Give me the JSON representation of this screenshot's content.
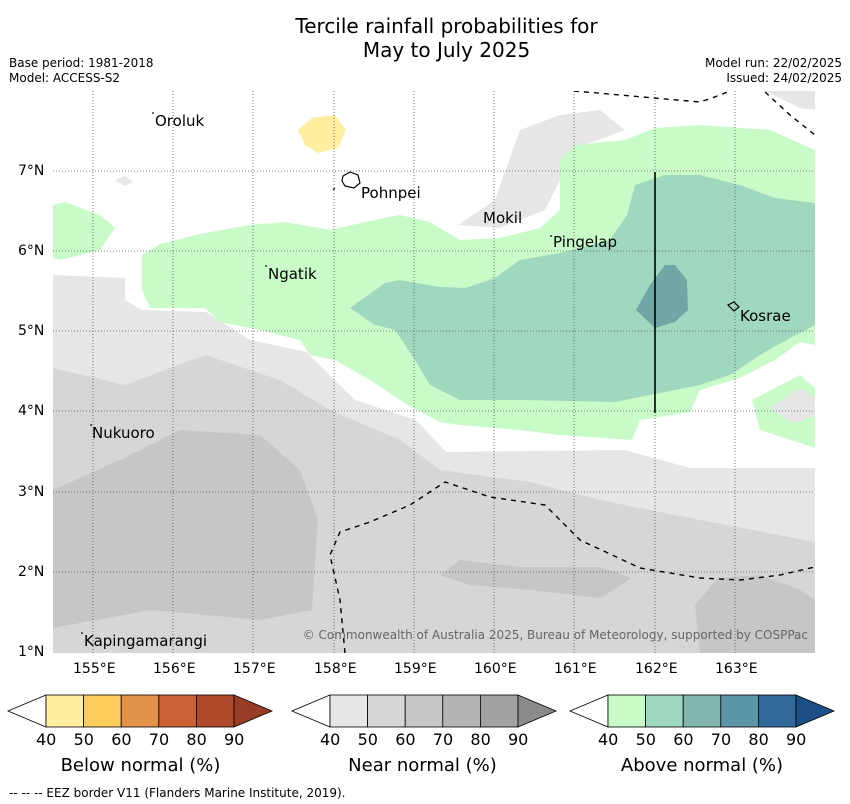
{
  "title": {
    "line1": "Tercile rainfall probabilities for",
    "line2": "May to July 2025"
  },
  "meta": {
    "base_period": "Base period: 1981-2018",
    "model": "Model: ACCESS-S2",
    "model_run": "Model run: 22/02/2025",
    "issued": "Issued: 24/02/2025"
  },
  "axes": {
    "lat_labels": [
      "7°N",
      "6°N",
      "5°N",
      "4°N",
      "3°N",
      "2°N",
      "1°N"
    ],
    "lon_labels": [
      "155°E",
      "156°E",
      "157°E",
      "158°E",
      "159°E",
      "160°E",
      "161°E",
      "162°E",
      "163°E"
    ]
  },
  "places": [
    {
      "name": "Oroluk"
    },
    {
      "name": "Pohnpei"
    },
    {
      "name": "Mokil"
    },
    {
      "name": "Pingelap"
    },
    {
      "name": "Ngatik"
    },
    {
      "name": "Kosrae"
    },
    {
      "name": "Nukuoro"
    },
    {
      "name": "Kapingamarangi"
    }
  ],
  "copyright": "© Commonwealth of Australia 2025, Bureau of Meteorology, supported by COSPPac",
  "colorbars": {
    "ticks": [
      "40",
      "50",
      "60",
      "70",
      "80",
      "90"
    ],
    "below": {
      "label": "Below normal (%)",
      "colors": [
        "#ffffff",
        "#ffeda0",
        "#fecc5c",
        "#e3924a",
        "#cc6233",
        "#b04a2a",
        "#983c25"
      ]
    },
    "near": {
      "label": "Near normal (%)",
      "colors": [
        "#ffffff",
        "#e6e6e6",
        "#d6d6d6",
        "#c6c6c6",
        "#b4b4b4",
        "#a2a2a2",
        "#8a8a8a"
      ]
    },
    "above": {
      "label": "Above normal (%)",
      "colors": [
        "#ffffff",
        "#c9fbc9",
        "#a0d8bf",
        "#80b6ae",
        "#5b97a6",
        "#306899",
        "#1c4f86"
      ]
    }
  },
  "footer": "--  --  -- EEZ border V11 (Flanders Marine Institute, 2019)."
}
